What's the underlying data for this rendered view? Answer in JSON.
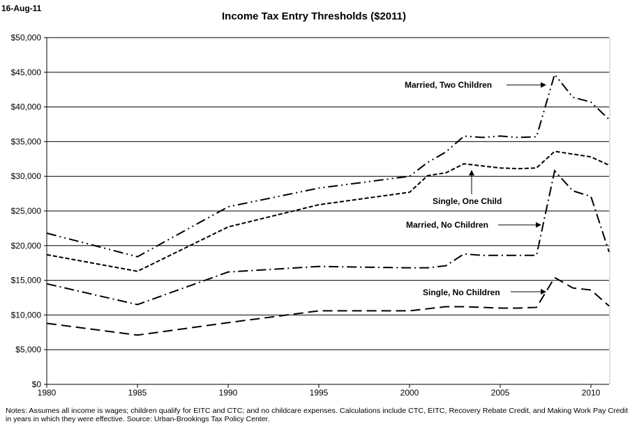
{
  "date_label": "16-Aug-11",
  "chart_data": {
    "type": "line",
    "title": "Income Tax Entry Thresholds ($2011)",
    "xlabel": "",
    "ylabel": "",
    "xlim": [
      1980,
      2011
    ],
    "ylim": [
      0,
      50000
    ],
    "grid": "horizontal",
    "x_ticks": [
      "1980",
      "1985",
      "1990",
      "1995",
      "2000",
      "2005",
      "2010"
    ],
    "y_ticks": [
      "$0",
      "$5,000",
      "$10,000",
      "$15,000",
      "$20,000",
      "$25,000",
      "$30,000",
      "$35,000",
      "$40,000",
      "$45,000",
      "$50,000"
    ],
    "x": [
      1980,
      1985,
      1990,
      1995,
      2000,
      2001,
      2002,
      2003,
      2004,
      2005,
      2006,
      2007,
      2008,
      2009,
      2010,
      2011
    ],
    "series": [
      {
        "name": "Married, Two Children",
        "dash": "dash-dot-dot",
        "values": [
          21800,
          18400,
          25600,
          28300,
          30000,
          32000,
          33500,
          35800,
          35600,
          35800,
          35600,
          35700,
          44700,
          41400,
          40700,
          38200
        ]
      },
      {
        "name": "Single, One Child",
        "dash": "short-dash",
        "values": [
          18700,
          16300,
          22700,
          25900,
          27700,
          30100,
          30500,
          31800,
          31500,
          31200,
          31100,
          31200,
          33600,
          33200,
          32800,
          31600
        ]
      },
      {
        "name": "Married, No Children",
        "dash": "dash-dot",
        "values": [
          14500,
          11500,
          16200,
          17000,
          16800,
          16800,
          17100,
          18800,
          18600,
          18600,
          18600,
          18600,
          30800,
          27900,
          27100,
          19100
        ]
      },
      {
        "name": "Single, No Children",
        "dash": "long-dash",
        "values": [
          8800,
          7100,
          8900,
          10600,
          10600,
          10900,
          11200,
          11200,
          11100,
          11000,
          11000,
          11100,
          15400,
          13900,
          13600,
          11300
        ]
      }
    ],
    "annotations": [
      {
        "text": "Married, Two Children",
        "series": 0,
        "arrow": "right"
      },
      {
        "text": "Single, One Child",
        "series": 1,
        "arrow": "up"
      },
      {
        "text": "Married, No Children",
        "series": 2,
        "arrow": "right"
      },
      {
        "text": "Single, No Children",
        "series": 3,
        "arrow": "right"
      }
    ],
    "notes": [
      "Notes: Assumes all income is wages; children qualify for EITC and CTC; and no childcare expenses. Calculations include CTC, EITC, Recovery Rebate Credit, and Making Work Pay Credit",
      "in years in which they were effective. Source: Urban-Brookings Tax Policy Center."
    ],
    "colors": {
      "line": "#000000",
      "grid": "#000000",
      "background": "#ffffff"
    }
  }
}
